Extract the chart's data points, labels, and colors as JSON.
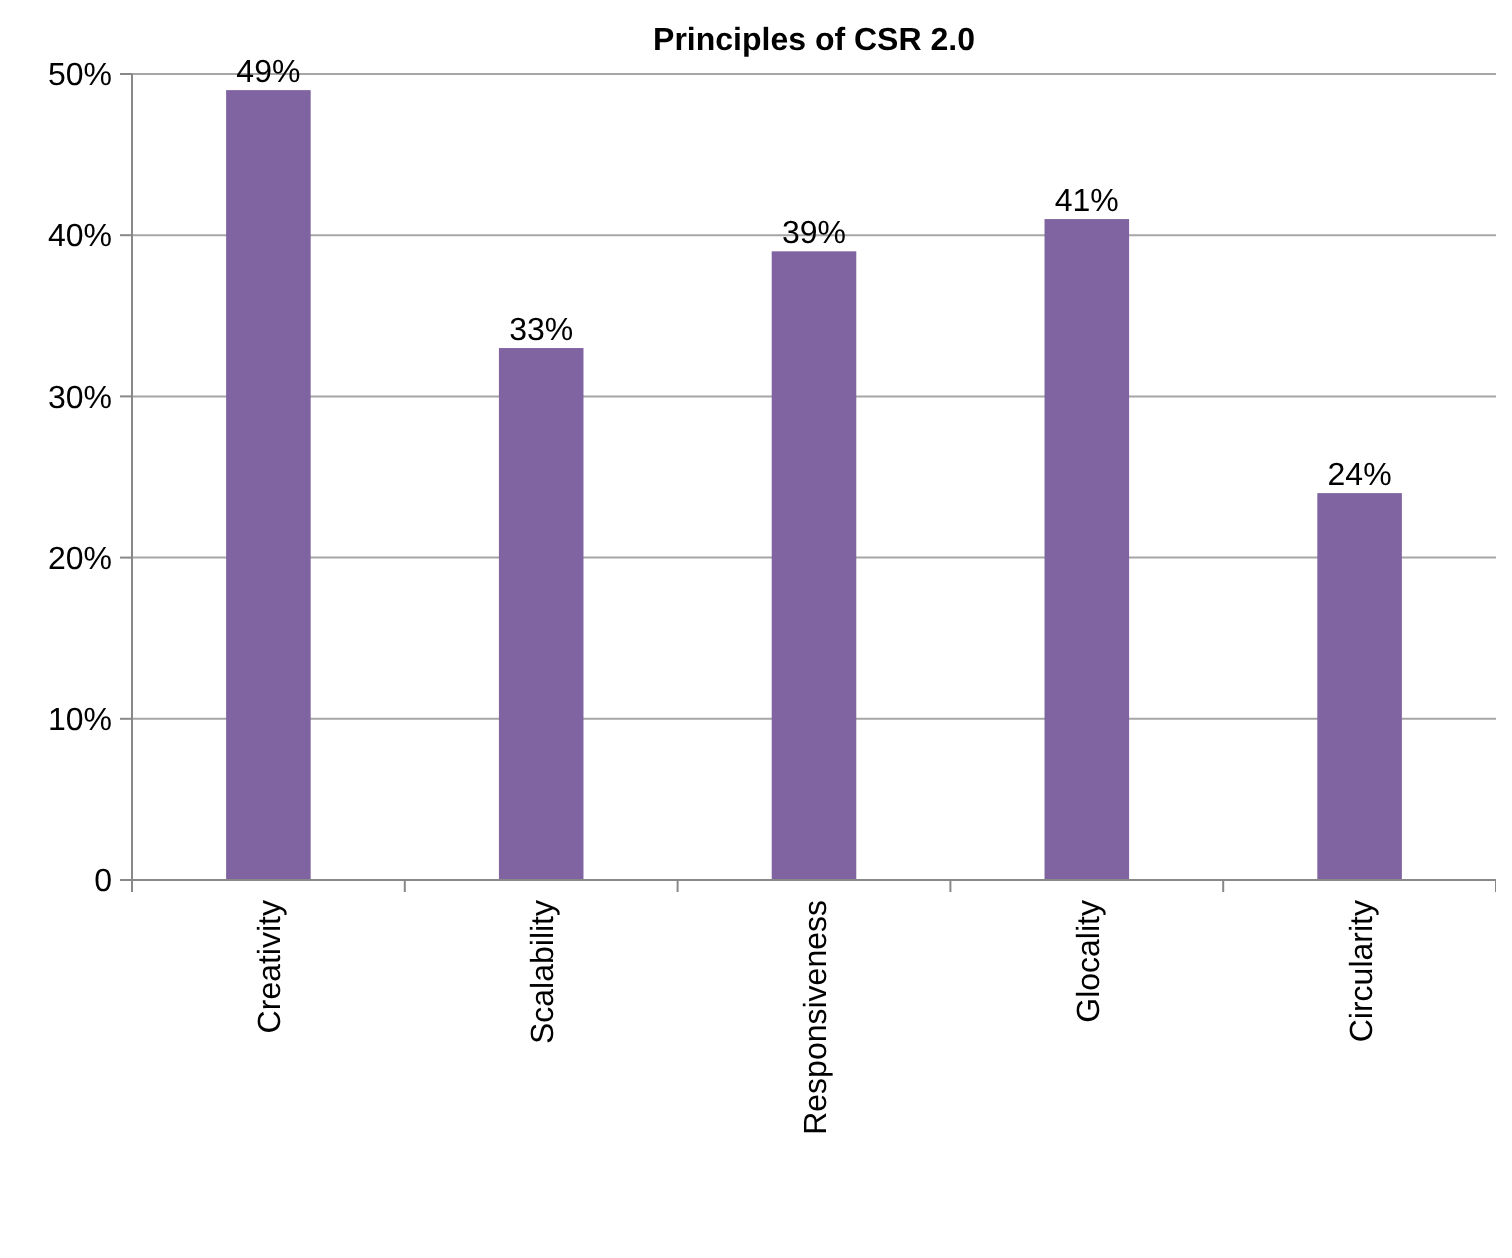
{
  "chart_data": {
    "type": "bar",
    "title": "Principles of CSR 2.0",
    "categories": [
      "Creativity",
      "Scalability",
      "Responsiveness",
      "Glocality",
      "Circularity"
    ],
    "values": [
      49,
      33,
      39,
      41,
      24
    ],
    "value_labels": [
      "49%",
      "33%",
      "39%",
      "41%",
      "24%"
    ],
    "color": "#8064a2",
    "ylim": [
      0,
      50
    ],
    "yticks": [
      {
        "value": 0,
        "label": "0"
      },
      {
        "value": 10,
        "label": "10%"
      },
      {
        "value": 20,
        "label": "20%"
      },
      {
        "value": 30,
        "label": "30%"
      },
      {
        "value": 40,
        "label": "40%"
      },
      {
        "value": 50,
        "label": "50%"
      }
    ],
    "grid": "y"
  }
}
